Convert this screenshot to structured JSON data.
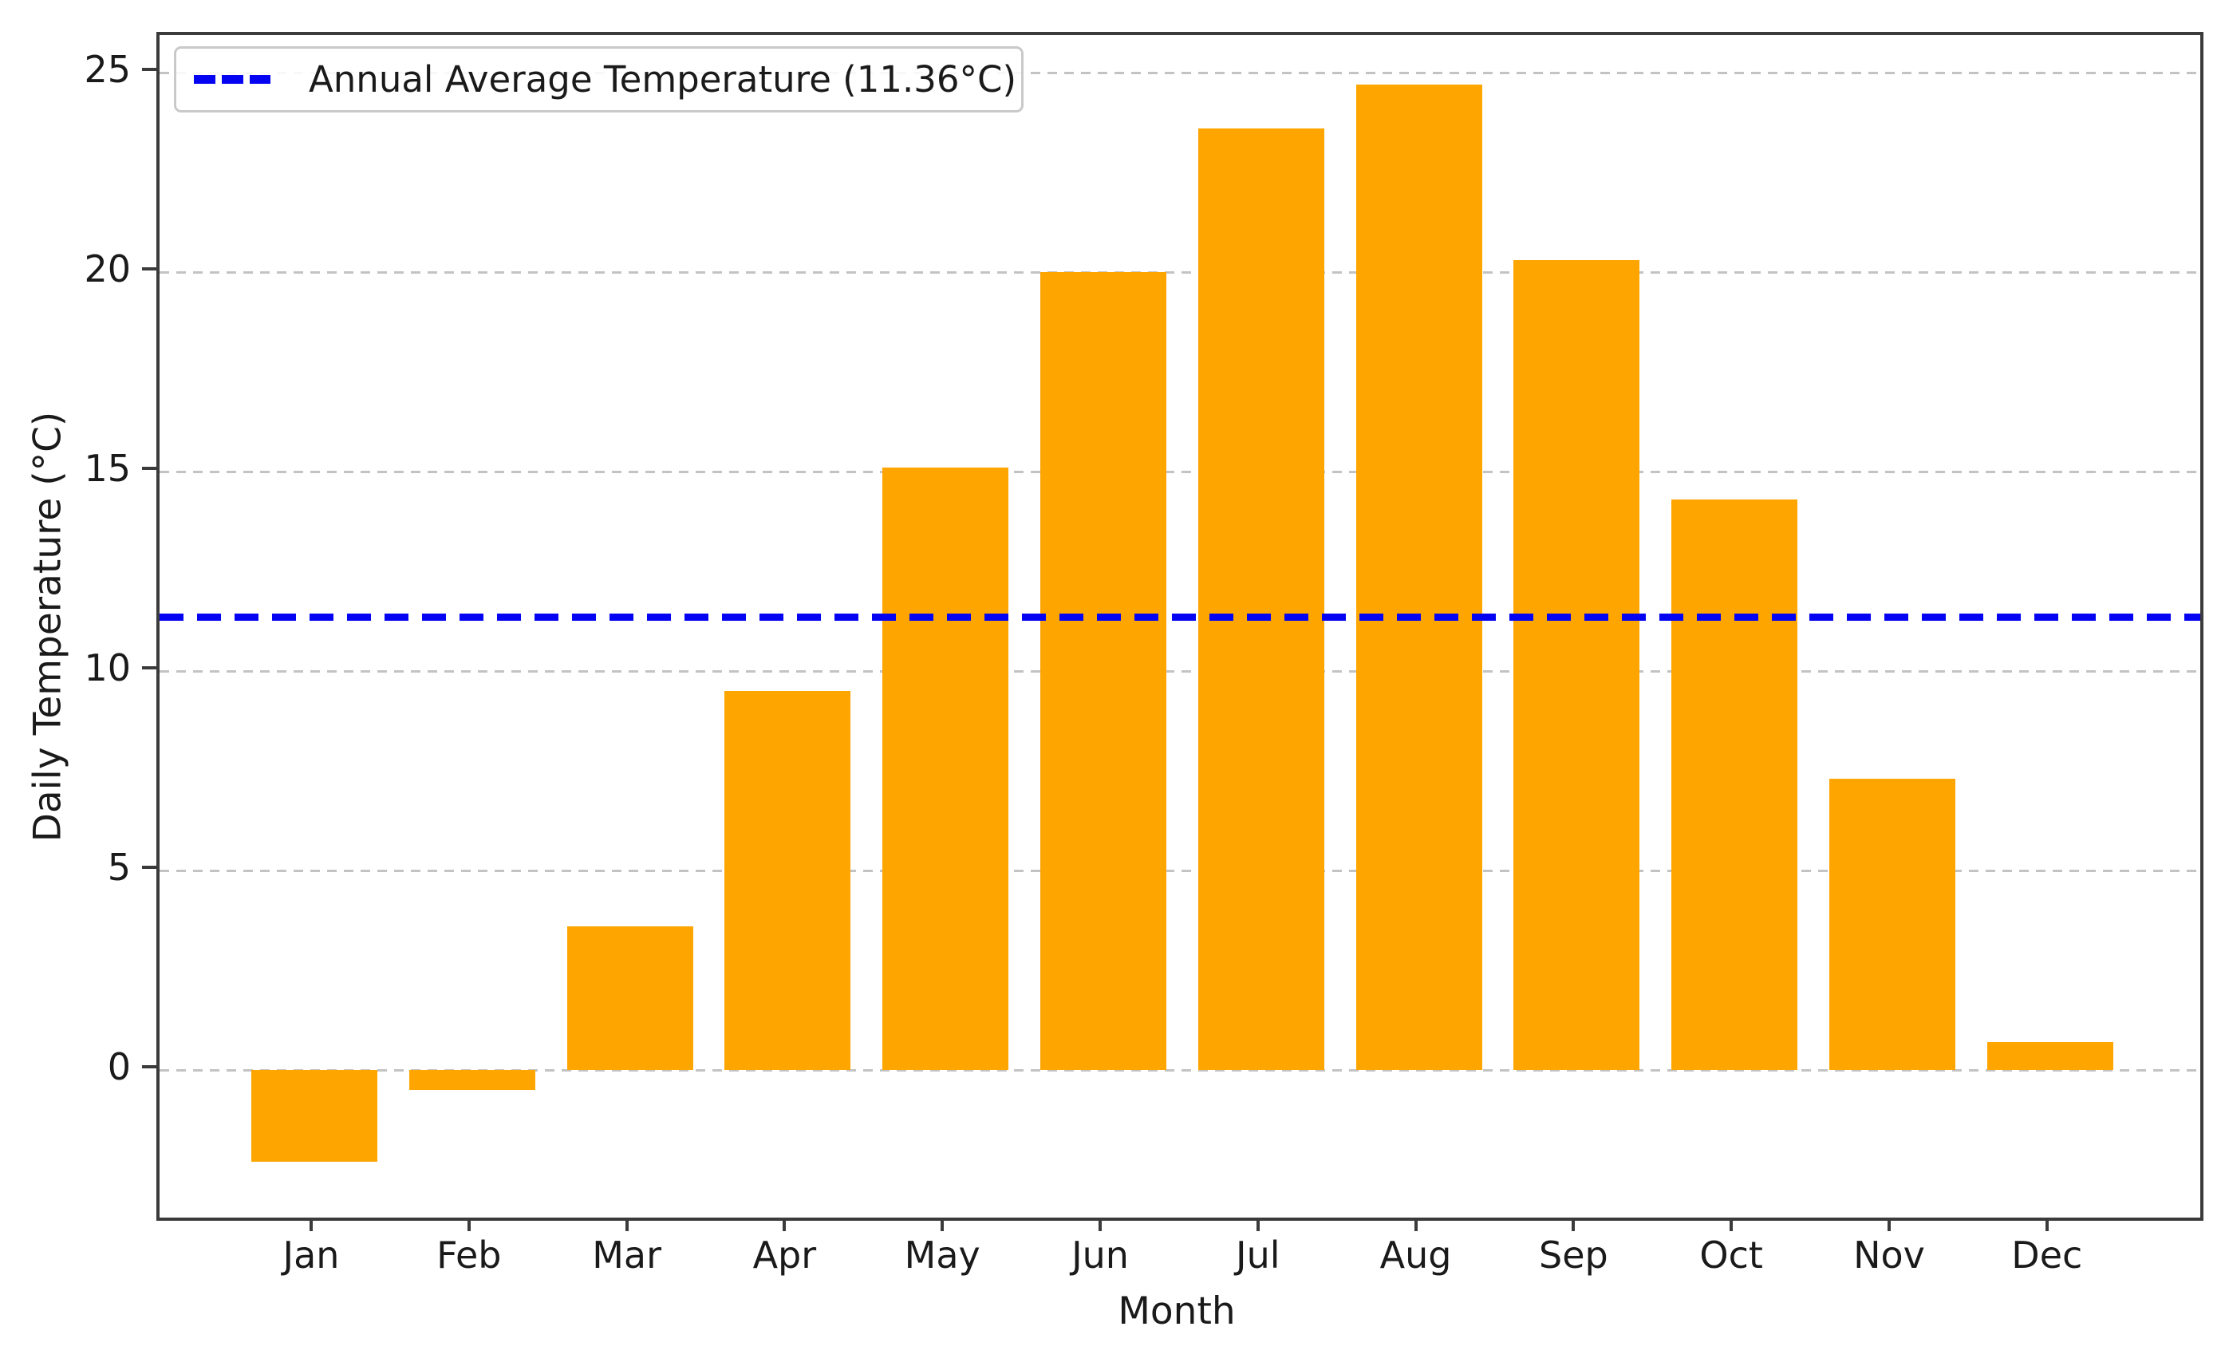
{
  "chart_data": {
    "type": "bar",
    "categories": [
      "Jan",
      "Feb",
      "Mar",
      "Apr",
      "May",
      "Jun",
      "Jul",
      "Aug",
      "Sep",
      "Oct",
      "Nov",
      "Dec"
    ],
    "values": [
      -2.3,
      -0.5,
      3.6,
      9.5,
      15.1,
      20.0,
      23.6,
      24.7,
      20.3,
      14.3,
      7.3,
      0.7
    ],
    "title": "",
    "xlabel": "Month",
    "ylabel": "Daily Temperature (°C)",
    "yticks": [
      0,
      5,
      10,
      15,
      20,
      25
    ],
    "ylim": [
      -3.7,
      25.94
    ],
    "bar_color": "#FFA500",
    "grid": true,
    "grid_style": "dashed",
    "legend_position": "upper-left",
    "average_line": {
      "value": 11.36,
      "label": "Annual Average Temperature (11.36°C)",
      "color": "#0000F2",
      "style": "dashed"
    }
  }
}
